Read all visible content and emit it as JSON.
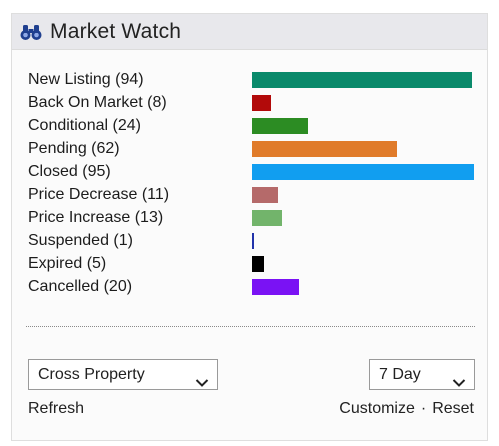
{
  "widget": {
    "title": "Market Watch",
    "icon": "binoculars-icon"
  },
  "chart_data": {
    "type": "bar",
    "orientation": "horizontal",
    "max": 95,
    "items": [
      {
        "label": "New Listing (94)",
        "value": 94,
        "color": "#0a8a6b"
      },
      {
        "label": "Back On Market (8)",
        "value": 8,
        "color": "#b20a0a"
      },
      {
        "label": "Conditional (24)",
        "value": 24,
        "color": "#2c8c23"
      },
      {
        "label": "Pending (62)",
        "value": 62,
        "color": "#e07b2a"
      },
      {
        "label": "Closed (95)",
        "value": 95,
        "color": "#119ef0"
      },
      {
        "label": "Price Decrease (11)",
        "value": 11,
        "color": "#b56a6a"
      },
      {
        "label": "Price Increase (13)",
        "value": 13,
        "color": "#72b46b"
      },
      {
        "label": "Suspended (1)",
        "value": 1,
        "color": "#2233aa"
      },
      {
        "label": "Expired (5)",
        "value": 5,
        "color": "#000000"
      },
      {
        "label": "Cancelled (20)",
        "value": 20,
        "color": "#7a12f4"
      }
    ]
  },
  "controls": {
    "property_select": "Cross Property",
    "period_select": "7 Day",
    "refresh": "Refresh",
    "customize": "Customize",
    "separator": "·",
    "reset": "Reset"
  }
}
